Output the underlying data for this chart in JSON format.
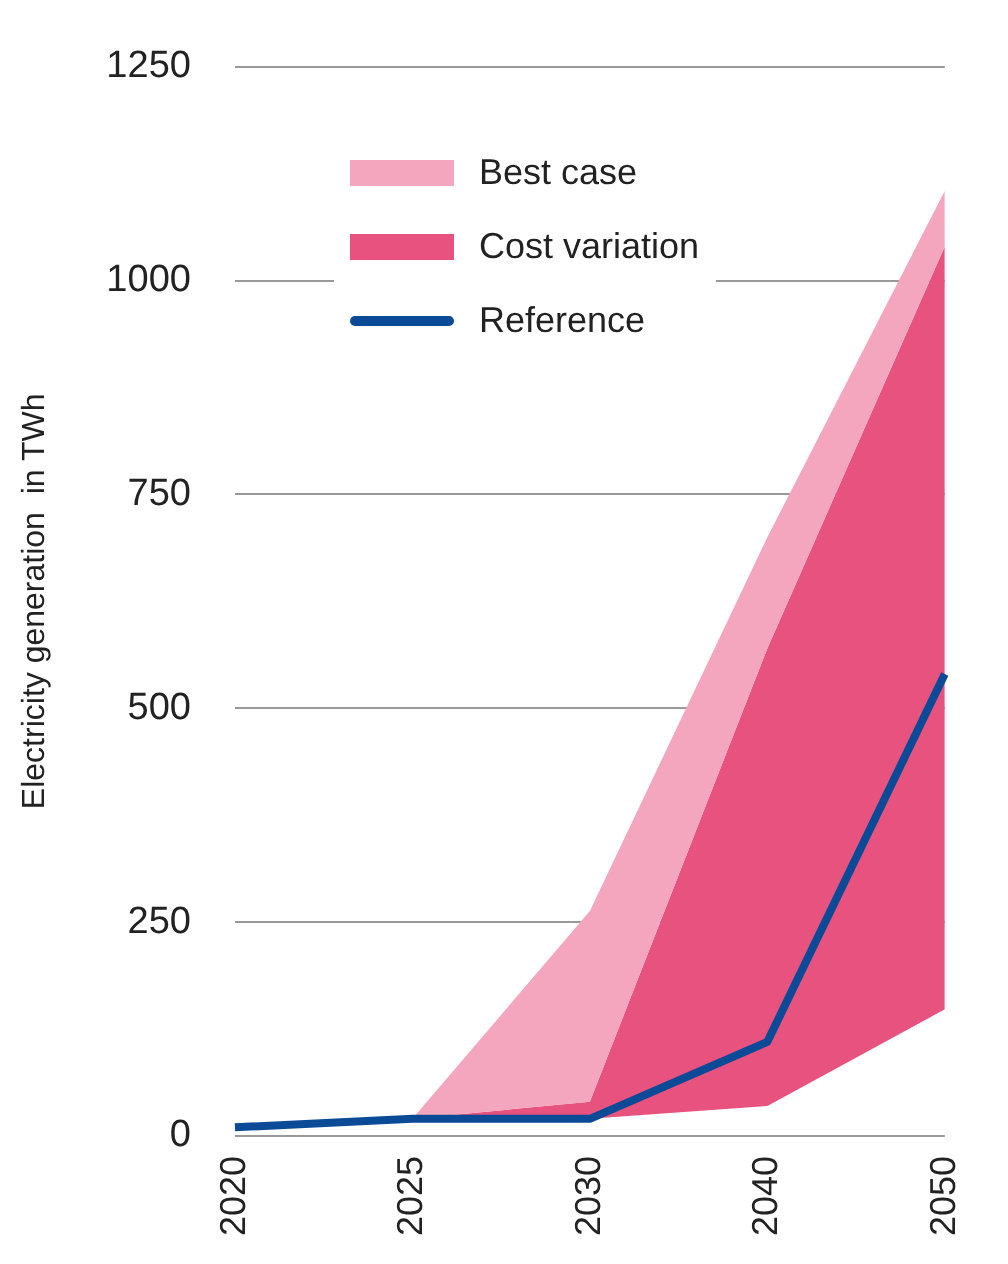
{
  "chart_data": {
    "type": "line",
    "ylabel": "Electricity generation  in TWh",
    "categories": [
      "2020",
      "2025",
      "2030",
      "2040",
      "2050"
    ],
    "series": [
      {
        "name": "Best case",
        "type": "area",
        "color": "#f3a6bd",
        "values": [
          null,
          null,
          null,
          null,
          null
        ],
        "lower": [
          null,
          20,
          40,
          570,
          1040
        ],
        "upper": [
          null,
          20,
          263,
          700,
          1105
        ]
      },
      {
        "name": "Cost variation",
        "type": "area",
        "color": "#e8527f",
        "values": [
          null,
          null,
          null,
          null,
          null
        ],
        "lower": [
          10,
          20,
          20,
          35,
          148
        ],
        "upper": [
          10,
          20,
          40,
          570,
          1040
        ]
      },
      {
        "name": "Reference",
        "type": "line",
        "color": "#0a4a96",
        "values": [
          10,
          20,
          20,
          110,
          540
        ]
      }
    ],
    "ylim": [
      0,
      1250
    ],
    "yticks": [
      0,
      250,
      500,
      750,
      1000,
      1250
    ],
    "grid": "y",
    "legend": "top left",
    "marker": "none",
    "line_style": "solid"
  }
}
